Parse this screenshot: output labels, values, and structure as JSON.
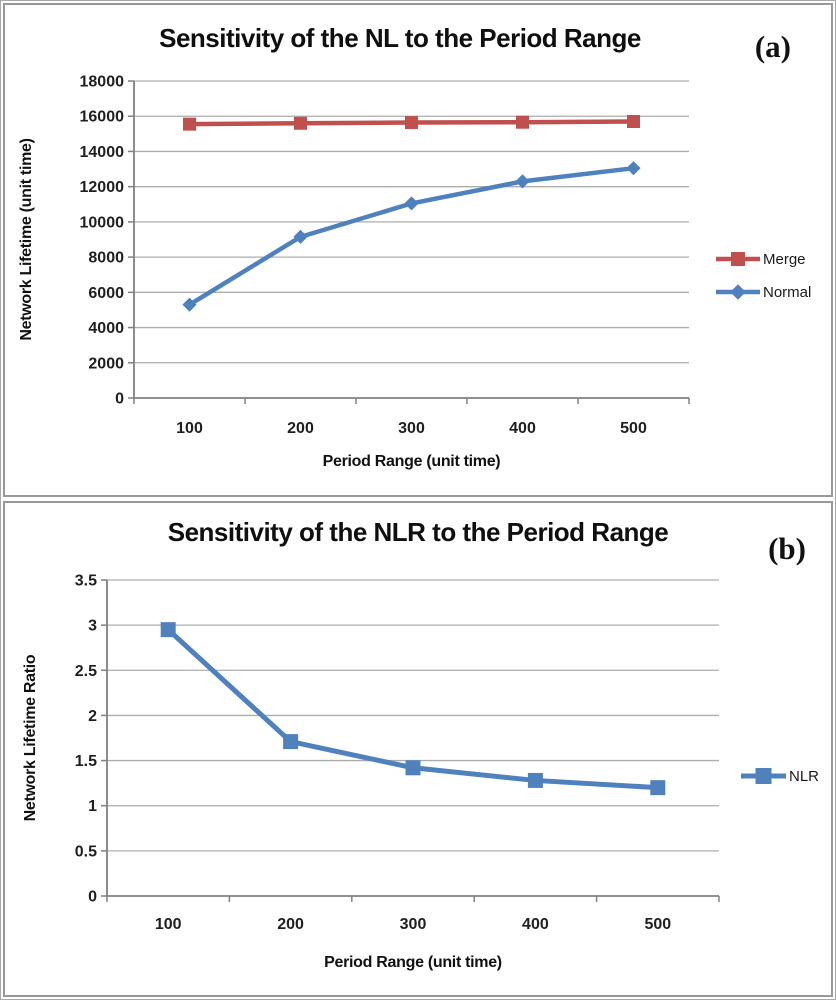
{
  "figure": {
    "panels": [
      {
        "panel_label": "(a)"
      },
      {
        "panel_label": "(b)"
      }
    ]
  },
  "chart_data": [
    {
      "type": "line",
      "panel_label": "(a)",
      "title": "Sensitivity of the NL to the Period Range",
      "xlabel": "Period Range (unit time)",
      "ylabel": "Network Lifetime (unit time)",
      "categories": [
        100,
        200,
        300,
        400,
        500
      ],
      "series": [
        {
          "name": "Merge",
          "color": "#C0504D",
          "marker": "square",
          "values": [
            15550,
            15600,
            15640,
            15660,
            15700
          ]
        },
        {
          "name": "Normal",
          "color": "#4F81BD",
          "marker": "diamond",
          "values": [
            5300,
            9150,
            11050,
            12300,
            13050
          ]
        }
      ],
      "ylim": [
        0,
        18000
      ],
      "ytick_step": 2000,
      "ytick_labels": [
        "0",
        "2000",
        "4000",
        "6000",
        "8000",
        "10000",
        "12000",
        "14000",
        "16000",
        "18000"
      ],
      "grid": true,
      "legend_position": "right"
    },
    {
      "type": "line",
      "panel_label": "(b)",
      "title": "Sensitivity of the NLR to the Period Range",
      "xlabel": "Period Range (unit time)",
      "ylabel": "Network Lifetime Ratio",
      "categories": [
        100,
        200,
        300,
        400,
        500
      ],
      "series": [
        {
          "name": "NLR",
          "color": "#4F81BD",
          "marker": "square",
          "values": [
            2.95,
            1.71,
            1.42,
            1.28,
            1.2
          ]
        }
      ],
      "ylim": [
        0,
        3.5
      ],
      "ytick_step": 0.5,
      "ytick_labels": [
        "0",
        "0.5",
        "1",
        "1.5",
        "2",
        "2.5",
        "3",
        "3.5"
      ],
      "grid": true,
      "legend_position": "right"
    }
  ],
  "colors": {
    "merge_red": "#C0504D",
    "normal_blue": "#4F81BD",
    "gridline": "#ADADAD",
    "axis": "#808080"
  }
}
